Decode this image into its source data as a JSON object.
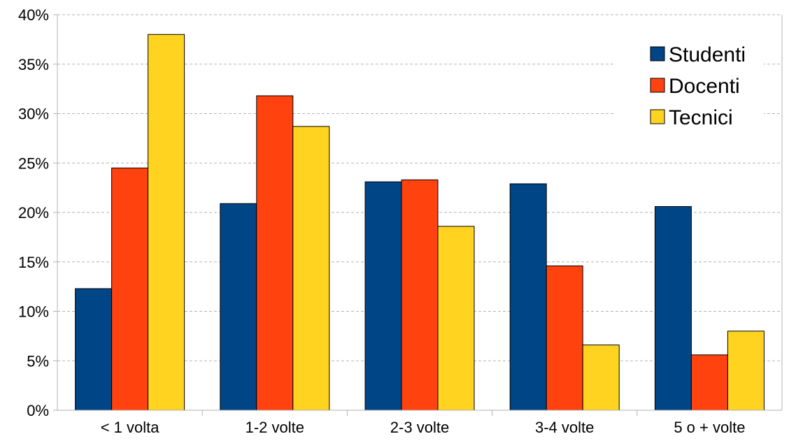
{
  "chart_data": {
    "type": "bar",
    "title": "",
    "xlabel": "",
    "ylabel": "",
    "categories": [
      "< 1 volta",
      "1-2 volte",
      "2-3 volte",
      "3-4 volte",
      "5 o + volte"
    ],
    "series": [
      {
        "name": "Studenti",
        "color": "#004586",
        "values": [
          12.3,
          20.9,
          23.1,
          22.9,
          20.6
        ]
      },
      {
        "name": "Docenti",
        "color": "#ff420e",
        "values": [
          24.5,
          31.8,
          23.3,
          14.6,
          5.6
        ]
      },
      {
        "name": "Tecnici",
        "color": "#ffd320",
        "values": [
          38.0,
          28.7,
          18.6,
          6.6,
          8.0
        ]
      }
    ],
    "ylim": [
      0,
      40
    ],
    "y_ticks": [
      0,
      5,
      10,
      15,
      20,
      25,
      30,
      35,
      40
    ],
    "y_tick_labels": [
      "0%",
      "5%",
      "10%",
      "15%",
      "20%",
      "25%",
      "30%",
      "35%",
      "40%"
    ],
    "grid": true,
    "legend_position": "top-right"
  }
}
